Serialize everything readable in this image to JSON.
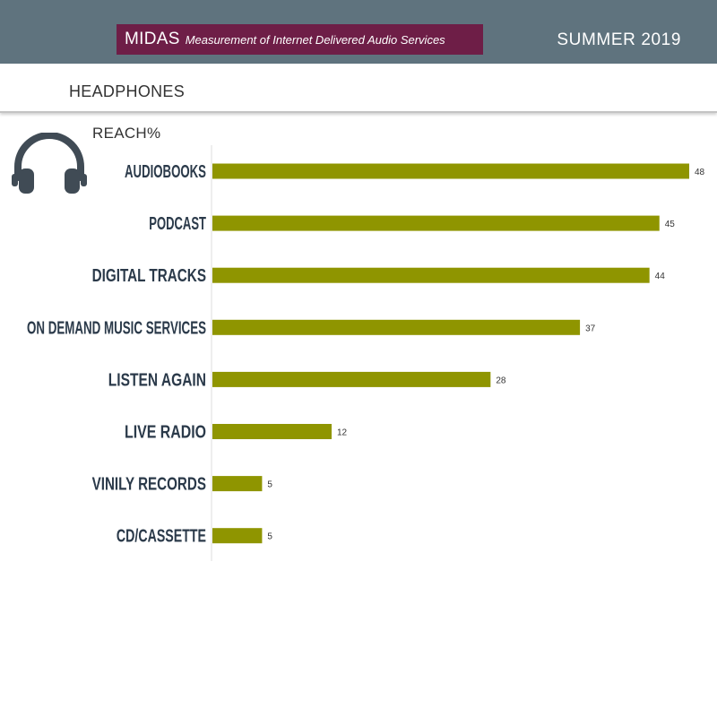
{
  "header": {
    "brand_name": "MIDAS",
    "brand_subtitle": "Measurement of Internet Delivered Audio Services",
    "season": "SUMMER 2019"
  },
  "subheader": {
    "title": "HEADPHONES"
  },
  "icon": "headphones-icon",
  "colors": {
    "header_bg": "#5f737e",
    "brand_bg": "#6e1e47",
    "bar": "#8f9500",
    "label": "#2b3a4a"
  },
  "chart_data": {
    "type": "bar",
    "orientation": "horizontal",
    "title": "REACH%",
    "categories": [
      "AUDIOBOOKS",
      "PODCAST",
      "DIGITAL TRACKS",
      "ON DEMAND MUSIC SERVICES",
      "LISTEN AGAIN",
      "LIVE RADIO",
      "VINILY RECORDS",
      "CD/CASSETTE"
    ],
    "values": [
      48,
      45,
      44,
      37,
      28,
      12,
      5,
      5
    ],
    "xlim": [
      0,
      48
    ],
    "grid": false,
    "legend": "none"
  }
}
